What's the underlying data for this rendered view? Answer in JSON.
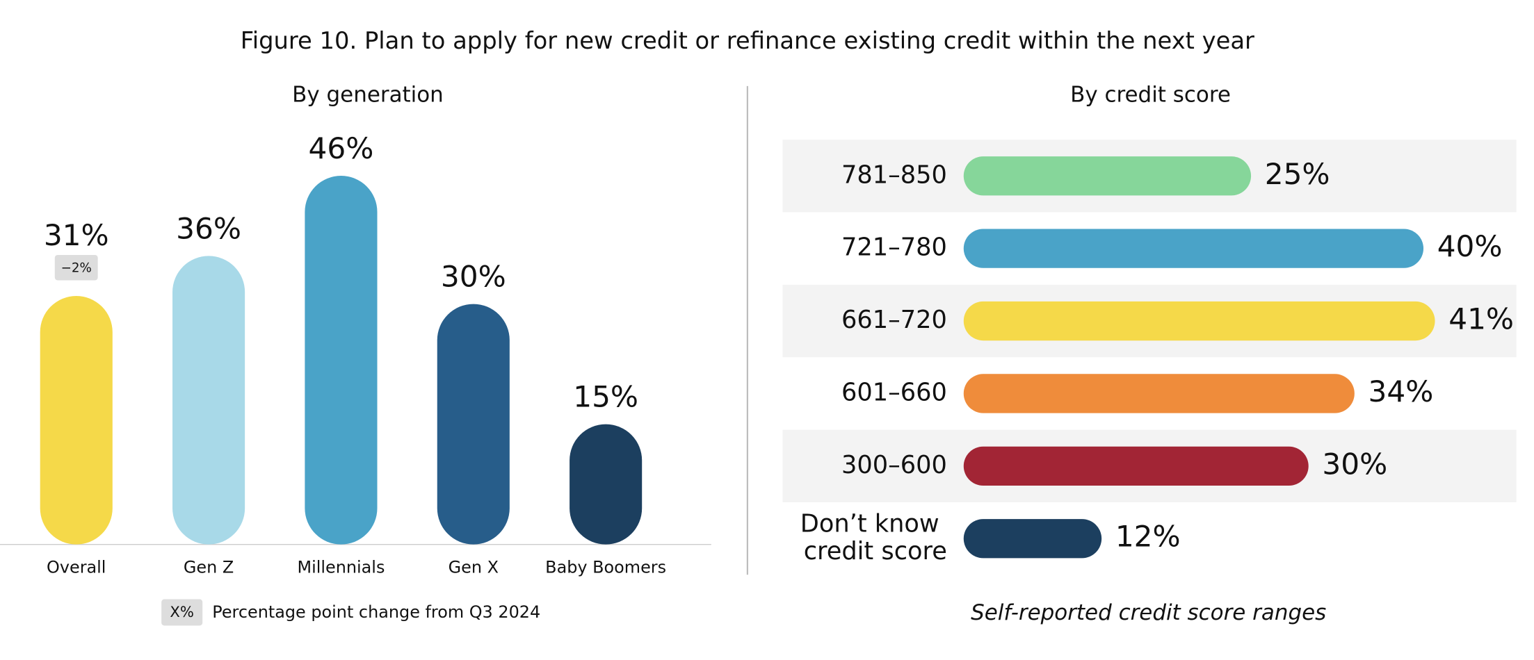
{
  "title": "Figure 10. Plan to apply for new credit or refinance existing credit within the next year",
  "chart_data": [
    {
      "type": "bar",
      "subtitle": "By generation",
      "categories": [
        "Overall",
        "Gen Z",
        "Millennials",
        "Gen X",
        "Baby Boomers"
      ],
      "values": [
        31,
        36,
        46,
        30,
        15
      ],
      "value_labels": [
        "31%",
        "36%",
        "46%",
        "30%",
        "15%"
      ],
      "colors": [
        "#f5d949",
        "#a8d9e8",
        "#4aa3c8",
        "#275d8a",
        "#1c3f5f"
      ],
      "change_labels": [
        "−2%",
        null,
        null,
        null,
        null
      ],
      "legend": {
        "key": "X%",
        "text": "Percentage point change from Q3 2024"
      }
    },
    {
      "type": "hbar",
      "subtitle": "By credit score",
      "categories": [
        "781–850",
        "721–780",
        "661–720",
        "601–660",
        "300–600",
        "Don’t know credit score"
      ],
      "values": [
        25,
        40,
        41,
        34,
        30,
        12
      ],
      "value_labels": [
        "25%",
        "40%",
        "41%",
        "34%",
        "30%",
        "12%"
      ],
      "colors": [
        "#86d69a",
        "#4aa3c8",
        "#f5d949",
        "#ef8c3b",
        "#a22535",
        "#1c3f5f"
      ],
      "note": "Self-reported credit score ranges"
    }
  ]
}
